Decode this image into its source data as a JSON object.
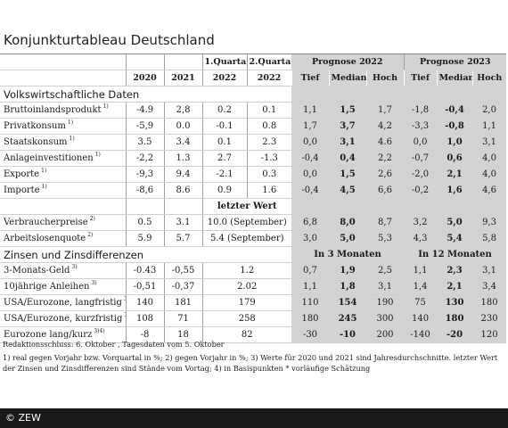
{
  "title": "Konjunkturtableau Deutschland",
  "header": {
    "row1": {
      "q1": "1.Quartal",
      "q2": "2.Quartal",
      "forecast2022": "Prognose 2022",
      "forecast2023": "Prognose 2023"
    },
    "row2": {
      "y2020": "2020",
      "y2021": "2021",
      "q1year": "2022",
      "q2year": "2022",
      "tief1": "Tief",
      "median1": "Median",
      "hoch1": "Hoch",
      "tief2": "Tief",
      "median2": "Median",
      "hoch2": "Hoch"
    }
  },
  "sections": {
    "volkswirtschaft": "Volkswirtschaftliche Daten",
    "letzter_wert": "letzter Wert",
    "zinsen": "Zinsen und Zinsdifferenzen",
    "in3": "In 3 Monaten",
    "in12": "In 12 Monaten"
  },
  "rows": [
    {
      "label": "Bruttoinlandsprodukt",
      "sup": "1)",
      "v2020": "-4.9",
      "v2021": "2,8",
      "q1": "0.2",
      "q2": "0.1",
      "f22": [
        "1,1",
        "1,5",
        "1,7"
      ],
      "f23": [
        "-1,8",
        "-0,4",
        "2,0"
      ]
    },
    {
      "label": "Privatkonsum",
      "sup": "1)",
      "v2020": "-5,9",
      "v2021": "0.0",
      "q1": "-0.1",
      "q2": "0.8",
      "f22": [
        "1,7",
        "3,7",
        "4,2"
      ],
      "f23": [
        "-3,3",
        "-0,8",
        "1,1"
      ]
    },
    {
      "label": "Staatskonsum",
      "sup": "1)",
      "v2020": "3.5",
      "v2021": "3.4",
      "q1": "0.1",
      "q2": "2.3",
      "f22": [
        "0,0",
        "3,1",
        "4.6"
      ],
      "f23": [
        "0,0",
        "1,0",
        "3,1"
      ]
    },
    {
      "label": "Anlageinvestitionen",
      "sup": "1)",
      "v2020": "-2,2",
      "v2021": "1.3",
      "q1": "2.7",
      "q2": "-1.3",
      "f22": [
        "-0,4",
        "0,4",
        "2,2"
      ],
      "f23": [
        "-0,7",
        "0,6",
        "4,0"
      ]
    },
    {
      "label": "Exporte",
      "sup": "1)",
      "v2020": "-9,3",
      "v2021": "9.4",
      "q1": "-2.1",
      "q2": "0.3",
      "f22": [
        "0,0",
        "1,5",
        "2,6"
      ],
      "f23": [
        "-2,0",
        "2,1",
        "4,0"
      ]
    },
    {
      "label": "Importe",
      "sup": "1)",
      "v2020": "-8,6",
      "v2021": "8.6",
      "q1": "0.9",
      "q2": "1.6",
      "f22": [
        "-0,4",
        "4,5",
        "6,6"
      ],
      "f23": [
        "-0,2",
        "1,6",
        "4,6"
      ]
    }
  ],
  "rows_lw": [
    {
      "label": "Verbraucherpreise",
      "sup": "2)",
      "v2020": "0.5",
      "v2021": "3.1",
      "last": "10.0 (September)",
      "f22": [
        "6,8",
        "8,0",
        "8,7"
      ],
      "f23": [
        "3,2",
        "5,0",
        "9,3"
      ]
    },
    {
      "label": "Arbeitslosenquote",
      "sup": "2)",
      "v2020": "5.9",
      "v2021": "5.7",
      "last": "5.4 (September)",
      "f22": [
        "3,0",
        "5,0",
        "5,3"
      ],
      "f23": [
        "4,3",
        "5,4",
        "5,8"
      ]
    }
  ],
  "rows_z": [
    {
      "label": "3-Monats-Geld",
      "sup": "3)",
      "v2020": "-0.43",
      "v2021": "-0,55",
      "last": "1.2",
      "f3": [
        "0,7",
        "1,9",
        "2,5"
      ],
      "f12": [
        "1,1",
        "2,3",
        "3,1"
      ]
    },
    {
      "label": "10jährige Anleihen",
      "sup": "3)",
      "v2020": "-0,51",
      "v2021": "-0,37",
      "last": "2.02",
      "f3": [
        "1,1",
        "1,8",
        "3,1"
      ],
      "f12": [
        "1,4",
        "2,1",
        "3,4"
      ]
    },
    {
      "label": "USA/Eurozone, langfristig",
      "sup": "3)4)",
      "v2020": "140",
      "v2021": "181",
      "last": "179",
      "f3": [
        "110",
        "154",
        "190"
      ],
      "f12": [
        "75",
        "130",
        "180"
      ]
    },
    {
      "label": "USA/Eurozone, kurzfristig",
      "sup": "3)4)",
      "v2020": "108",
      "v2021": "71",
      "last": "258",
      "f3": [
        "180",
        "245",
        "300"
      ],
      "f12": [
        "140",
        "180",
        "230"
      ]
    },
    {
      "label": "Eurozone lang/kurz",
      "sup": "3)4)",
      "v2020": "-8",
      "v2021": "18",
      "last": "82",
      "f3": [
        "-30",
        "-10",
        "200"
      ],
      "f12": [
        "-140",
        "-20",
        "120"
      ]
    }
  ],
  "notes": {
    "redaktion": "Redaktionsschluss: 6. Oktober , Tagesdaten vom 5. Oktober",
    "footnotes": "1) real gegen Vorjahr bzw. Vorquartal in %; 2) gegen Vorjahr in %; 3) Werte für 2020 und 2021 sind Jahresdurchschnitte. letzter Wert der Zinsen und Zinsdifferenzen sind Stände vom Vortag; 4) in Basispunkten * vorläufige Schätzung"
  },
  "footer": "© ZEW"
}
